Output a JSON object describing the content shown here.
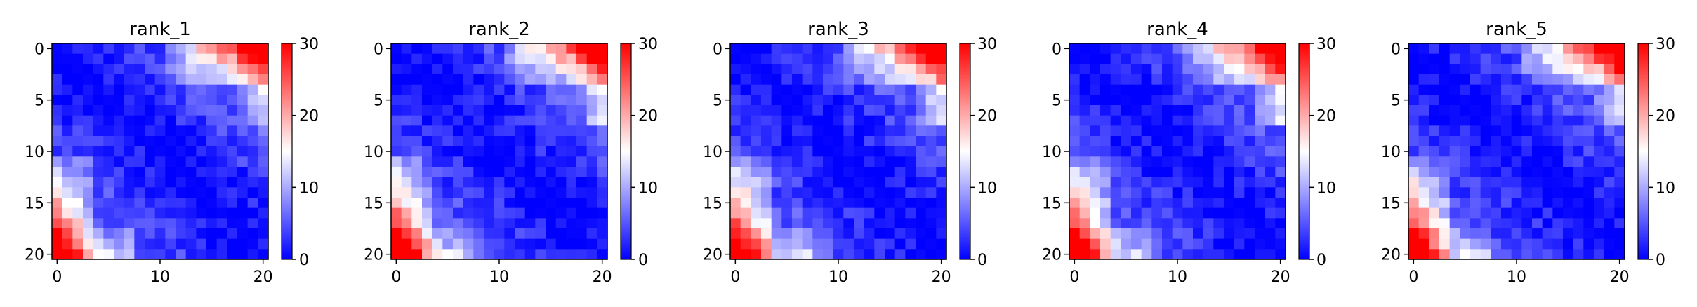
{
  "chart_data": [
    {
      "type": "heatmap",
      "title": "rank_1",
      "xticks": [
        "0",
        "10",
        "20"
      ],
      "yticks": [
        "0",
        "5",
        "10",
        "15",
        "20"
      ],
      "colorbar": {
        "ticks": [
          "0",
          "10",
          "20",
          "30"
        ],
        "min": 0,
        "max": 30
      },
      "colormap": [
        "#0000ff",
        "#ffffff",
        "#ff0000"
      ]
    },
    {
      "type": "heatmap",
      "title": "rank_2",
      "xticks": [
        "0",
        "10",
        "20"
      ],
      "yticks": [
        "0",
        "5",
        "10",
        "15",
        "20"
      ],
      "colorbar": {
        "ticks": [
          "0",
          "10",
          "20",
          "30"
        ],
        "min": 0,
        "max": 30
      },
      "colormap": [
        "#0000ff",
        "#ffffff",
        "#ff0000"
      ]
    },
    {
      "type": "heatmap",
      "title": "rank_3",
      "xticks": [
        "0",
        "10",
        "20"
      ],
      "yticks": [
        "0",
        "5",
        "10",
        "15",
        "20"
      ],
      "colorbar": {
        "ticks": [
          "0",
          "10",
          "20",
          "30"
        ],
        "min": 0,
        "max": 30
      },
      "colormap": [
        "#0000ff",
        "#ffffff",
        "#ff0000"
      ]
    },
    {
      "type": "heatmap",
      "title": "rank_4",
      "xticks": [
        "0",
        "10",
        "20"
      ],
      "yticks": [
        "0",
        "5",
        "10",
        "15",
        "20"
      ],
      "colorbar": {
        "ticks": [
          "0",
          "10",
          "20",
          "30"
        ],
        "min": 0,
        "max": 30
      },
      "colormap": [
        "#0000ff",
        "#ffffff",
        "#ff0000"
      ]
    },
    {
      "type": "heatmap",
      "title": "rank_5",
      "xticks": [
        "0",
        "10",
        "20"
      ],
      "yticks": [
        "0",
        "5",
        "10",
        "15",
        "20"
      ],
      "colorbar": {
        "ticks": [
          "0",
          "10",
          "20",
          "30"
        ],
        "min": 0,
        "max": 30
      },
      "colormap": [
        "#0000ff",
        "#ffffff",
        "#ff0000"
      ]
    }
  ]
}
